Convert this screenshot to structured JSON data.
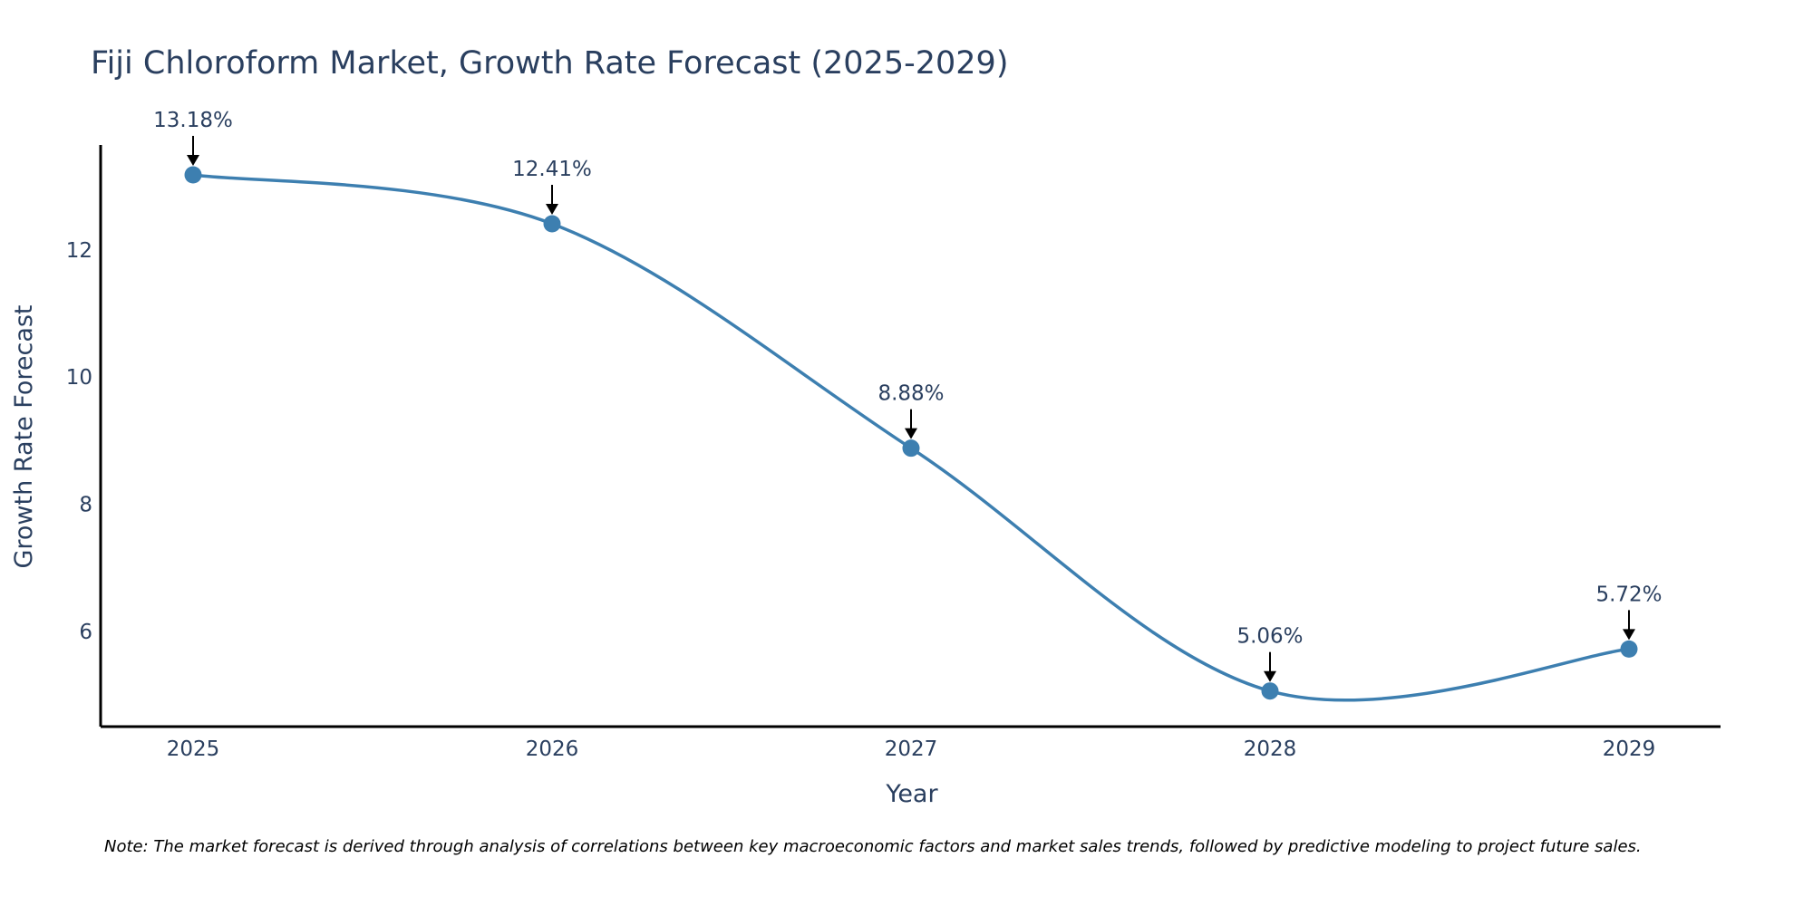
{
  "chart_data": {
    "type": "line",
    "title": "Fiji Chloroform Market, Growth Rate Forecast (2025-2029)",
    "xlabel": "Year",
    "ylabel": "Growth Rate Forecast",
    "categories": [
      "2025",
      "2026",
      "2027",
      "2028",
      "2029"
    ],
    "series": [
      {
        "name": "Growth Rate Forecast",
        "values": [
          13.18,
          12.41,
          8.88,
          5.06,
          5.72
        ]
      }
    ],
    "data_labels": [
      "13.18%",
      "12.41%",
      "8.88%",
      "5.06%",
      "5.72%"
    ],
    "y_ticks": [
      6,
      8,
      10,
      12
    ],
    "ylim": [
      4.5,
      13.65
    ],
    "grid": false,
    "line_shape": "spline",
    "colors": {
      "line": "#3d7fb0",
      "marker": "#3d7fb0",
      "axis": "#000000"
    },
    "note": "Note: The market forecast is derived through analysis of correlations between key macroeconomic factors and market sales trends, followed by predictive modeling to project future sales."
  }
}
